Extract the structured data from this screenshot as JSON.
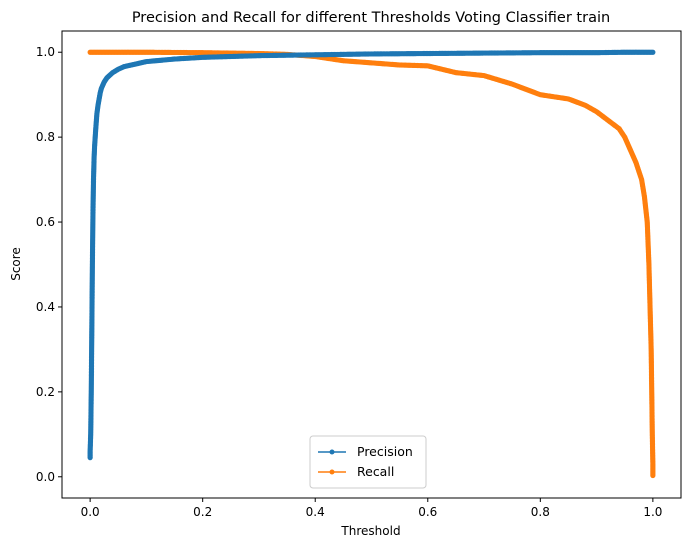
{
  "chart_data": {
    "type": "line",
    "title": "Precision and Recall for different Thresholds Voting Classifier train",
    "xlabel": "Threshold",
    "ylabel": "Score",
    "xlim": [
      -0.05,
      1.05
    ],
    "ylim": [
      -0.05,
      1.05
    ],
    "xticks": [
      0.0,
      0.2,
      0.4,
      0.6,
      0.8,
      1.0
    ],
    "xtick_labels": [
      "0.0",
      "0.2",
      "0.4",
      "0.6",
      "0.8",
      "1.0"
    ],
    "yticks": [
      0.0,
      0.2,
      0.4,
      0.6,
      0.8,
      1.0
    ],
    "ytick_labels": [
      "0.0",
      "0.2",
      "0.4",
      "0.6",
      "0.8",
      "1.0"
    ],
    "grid": false,
    "legend_position": "lower-center",
    "series": [
      {
        "name": "Precision",
        "color": "#1f77b4",
        "marker": "dot",
        "x": [
          0.0,
          0.0,
          0.001,
          0.002,
          0.003,
          0.004,
          0.005,
          0.006,
          0.007,
          0.008,
          0.009,
          0.01,
          0.012,
          0.014,
          0.016,
          0.018,
          0.02,
          0.025,
          0.03,
          0.04,
          0.05,
          0.06,
          0.08,
          0.1,
          0.15,
          0.2,
          0.25,
          0.3,
          0.35,
          0.4,
          0.5,
          0.6,
          0.7,
          0.8,
          0.9,
          0.95,
          1.0
        ],
        "y": [
          0.045,
          0.06,
          0.1,
          0.2,
          0.35,
          0.5,
          0.62,
          0.7,
          0.75,
          0.78,
          0.8,
          0.82,
          0.855,
          0.875,
          0.89,
          0.905,
          0.915,
          0.93,
          0.94,
          0.952,
          0.96,
          0.966,
          0.972,
          0.978,
          0.984,
          0.988,
          0.99,
          0.992,
          0.993,
          0.994,
          0.996,
          0.997,
          0.998,
          0.999,
          0.999,
          1.0,
          1.0
        ]
      },
      {
        "name": "Recall",
        "color": "#ff7f0e",
        "marker": "dot",
        "x": [
          0.0,
          0.05,
          0.1,
          0.2,
          0.3,
          0.35,
          0.4,
          0.45,
          0.5,
          0.55,
          0.6,
          0.65,
          0.7,
          0.75,
          0.8,
          0.85,
          0.88,
          0.9,
          0.92,
          0.94,
          0.95,
          0.96,
          0.97,
          0.98,
          0.985,
          0.99,
          0.993,
          0.995,
          0.997,
          0.998,
          0.999,
          1.0,
          1.0,
          1.0
        ],
        "y": [
          1.0,
          1.0,
          1.0,
          0.999,
          0.997,
          0.995,
          0.99,
          0.98,
          0.975,
          0.97,
          0.968,
          0.952,
          0.945,
          0.925,
          0.9,
          0.89,
          0.875,
          0.86,
          0.84,
          0.82,
          0.8,
          0.77,
          0.74,
          0.7,
          0.66,
          0.6,
          0.5,
          0.4,
          0.3,
          0.2,
          0.1,
          0.03,
          0.01,
          0.003
        ]
      }
    ]
  }
}
